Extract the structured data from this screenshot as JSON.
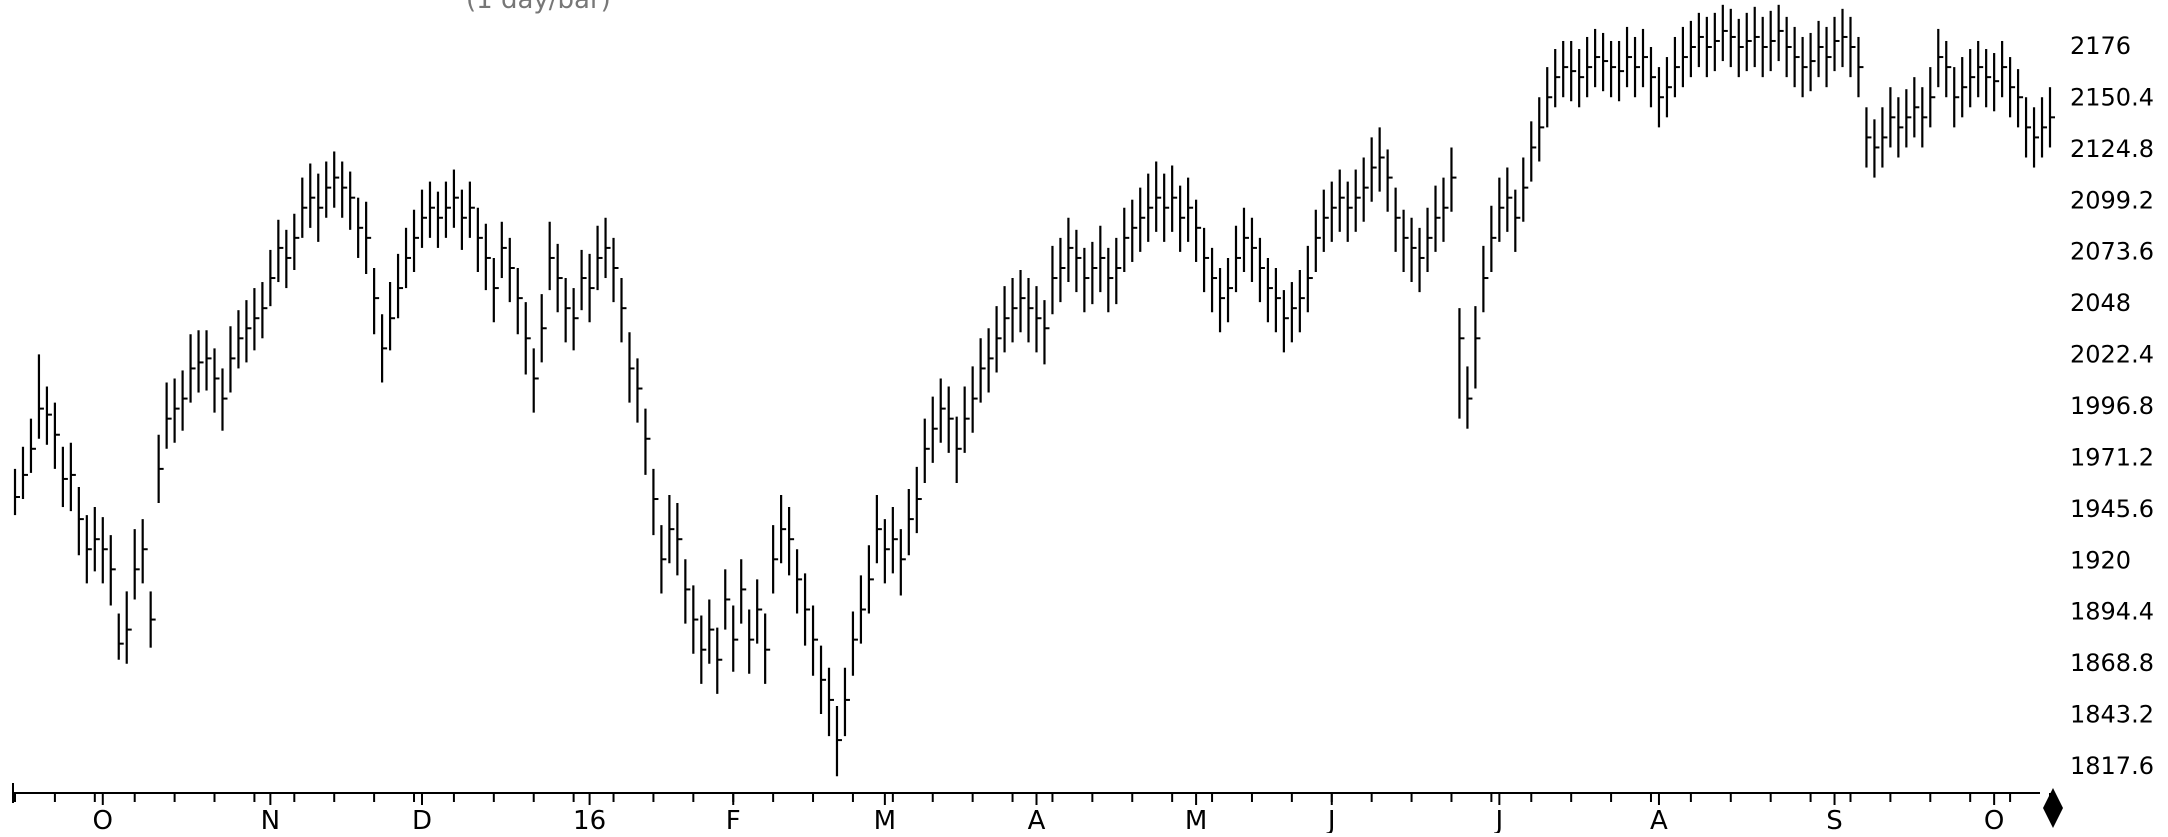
{
  "chart_data": {
    "type": "ohlc",
    "title": "",
    "header_fragment": "(1 day/bar)",
    "xlabel": "",
    "ylabel": "",
    "ylim": [
      1805,
      2188
    ],
    "y_ticks": [
      "2176",
      "2150.4",
      "2124.8",
      "2099.2",
      "2073.6",
      "2048",
      "2022.4",
      "1996.8",
      "1971.2",
      "1945.6",
      "1920",
      "1894.4",
      "1868.8",
      "1843.2",
      "1817.6"
    ],
    "x_tick_labels": [
      "O",
      "N",
      "D",
      "16",
      "F",
      "M",
      "A",
      "M",
      "J",
      "J",
      "A",
      "S",
      "O"
    ],
    "x_tick_bar_index": [
      11,
      32,
      51,
      72,
      90,
      109,
      128,
      148,
      165,
      186,
      206,
      228,
      248
    ],
    "grid": false,
    "legend": "none",
    "colors": {
      "bars": "#000000",
      "axis": "#000000",
      "marker": "#000000"
    },
    "series": [
      {
        "closes": [
          1951,
          1962,
          1975,
          1995,
          1992,
          1982,
          1960,
          1962,
          1940,
          1925,
          1930,
          1925,
          1915,
          1878,
          1885,
          1915,
          1925,
          1890,
          1965,
          1990,
          1995,
          2000,
          2015,
          2018,
          2020,
          2010,
          2000,
          2020,
          2030,
          2035,
          2040,
          2045,
          2060,
          2075,
          2070,
          2080,
          2095,
          2100,
          2095,
          2105,
          2110,
          2105,
          2100,
          2085,
          2080,
          2050,
          2025,
          2040,
          2055,
          2070,
          2080,
          2090,
          2095,
          2090,
          2095,
          2100,
          2090,
          2095,
          2080,
          2070,
          2055,
          2075,
          2065,
          2050,
          2030,
          2010,
          2035,
          2070,
          2060,
          2045,
          2040,
          2060,
          2055,
          2070,
          2075,
          2065,
          2045,
          2015,
          2005,
          1980,
          1950,
          1920,
          1935,
          1930,
          1905,
          1890,
          1875,
          1885,
          1870,
          1900,
          1880,
          1905,
          1880,
          1895,
          1875,
          1920,
          1935,
          1930,
          1910,
          1895,
          1880,
          1860,
          1850,
          1830,
          1850,
          1880,
          1895,
          1910,
          1935,
          1925,
          1930,
          1920,
          1940,
          1950,
          1975,
          1985,
          1995,
          1990,
          1975,
          1990,
          2000,
          2015,
          2020,
          2030,
          2040,
          2045,
          2050,
          2045,
          2040,
          2035,
          2060,
          2065,
          2075,
          2070,
          2060,
          2065,
          2070,
          2060,
          2065,
          2080,
          2085,
          2090,
          2095,
          2100,
          2095,
          2100,
          2090,
          2095,
          2085,
          2070,
          2060,
          2050,
          2055,
          2070,
          2080,
          2075,
          2065,
          2055,
          2050,
          2040,
          2045,
          2050,
          2060,
          2080,
          2090,
          2095,
          2100,
          2095,
          2100,
          2105,
          2115,
          2120,
          2110,
          2090,
          2080,
          2075,
          2070,
          2080,
          2090,
          2095,
          2110,
          2030,
          2000,
          2030,
          2060,
          2080,
          2095,
          2100,
          2090,
          2105,
          2125,
          2135,
          2150,
          2160,
          2165,
          2163,
          2160,
          2165,
          2170,
          2168,
          2165,
          2163,
          2170,
          2165,
          2170,
          2160,
          2150,
          2155,
          2165,
          2170,
          2175,
          2180,
          2175,
          2178,
          2183,
          2180,
          2175,
          2178,
          2180,
          2175,
          2178,
          2183,
          2175,
          2170,
          2165,
          2168,
          2175,
          2170,
          2178,
          2180,
          2175,
          2165,
          2130,
          2125,
          2130,
          2140,
          2135,
          2140,
          2145,
          2140,
          2150,
          2170,
          2165,
          2150,
          2155,
          2160,
          2165,
          2160,
          2158,
          2165,
          2155,
          2150,
          2135,
          2130,
          2135,
          2140
        ],
        "highs": [
          1965,
          1976,
          1990,
          2022,
          2006,
          1998,
          1976,
          1978,
          1956,
          1942,
          1946,
          1941,
          1932,
          1893,
          1904,
          1935,
          1940,
          1904,
          1982,
          2008,
          2010,
          2014,
          2032,
          2034,
          2034,
          2025,
          2015,
          2036,
          2044,
          2049,
          2055,
          2058,
          2074,
          2089,
          2084,
          2092,
          2110,
          2117,
          2112,
          2118,
          2123,
          2118,
          2113,
          2100,
          2098,
          2065,
          2042,
          2058,
          2072,
          2085,
          2094,
          2104,
          2108,
          2103,
          2108,
          2114,
          2104,
          2108,
          2095,
          2087,
          2070,
          2088,
          2080,
          2065,
          2048,
          2025,
          2052,
          2088,
          2077,
          2060,
          2055,
          2074,
          2072,
          2086,
          2090,
          2080,
          2060,
          2033,
          2020,
          1995,
          1965,
          1937,
          1952,
          1948,
          1920,
          1907,
          1892,
          1900,
          1886,
          1915,
          1897,
          1920,
          1895,
          1910,
          1893,
          1937,
          1952,
          1946,
          1925,
          1913,
          1897,
          1877,
          1866,
          1847,
          1866,
          1894,
          1912,
          1927,
          1952,
          1940,
          1946,
          1935,
          1955,
          1966,
          1990,
          2001,
          2010,
          2006,
          1991,
          2006,
          2016,
          2030,
          2035,
          2046,
          2056,
          2060,
          2064,
          2060,
          2056,
          2049,
          2076,
          2080,
          2090,
          2084,
          2075,
          2078,
          2086,
          2075,
          2080,
          2095,
          2099,
          2105,
          2112,
          2118,
          2112,
          2116,
          2106,
          2110,
          2099,
          2085,
          2075,
          2065,
          2070,
          2086,
          2095,
          2090,
          2080,
          2070,
          2065,
          2054,
          2058,
          2064,
          2076,
          2094,
          2104,
          2108,
          2114,
          2108,
          2114,
          2120,
          2130,
          2135,
          2124,
          2105,
          2094,
          2090,
          2085,
          2095,
          2106,
          2110,
          2125,
          2045,
          2016,
          2046,
          2076,
          2096,
          2110,
          2115,
          2104,
          2120,
          2138,
          2150,
          2165,
          2174,
          2178,
          2178,
          2174,
          2180,
          2184,
          2182,
          2178,
          2178,
          2185,
          2180,
          2184,
          2175,
          2165,
          2170,
          2180,
          2185,
          2188,
          2192,
          2190,
          2192,
          2196,
          2194,
          2189,
          2192,
          2195,
          2190,
          2193,
          2196,
          2190,
          2185,
          2180,
          2182,
          2188,
          2185,
          2190,
          2194,
          2190,
          2180,
          2145,
          2139,
          2145,
          2155,
          2150,
          2154,
          2160,
          2155,
          2165,
          2184,
          2178,
          2165,
          2170,
          2174,
          2178,
          2174,
          2172,
          2178,
          2170,
          2164,
          2150,
          2145,
          2150,
          2155
        ],
        "lows": [
          1942,
          1950,
          1963,
          1980,
          1977,
          1965,
          1946,
          1944,
          1922,
          1908,
          1914,
          1908,
          1897,
          1870,
          1868,
          1900,
          1908,
          1876,
          1948,
          1975,
          1978,
          1984,
          1998,
          2003,
          2004,
          1993,
          1984,
          2003,
          2015,
          2018,
          2024,
          2030,
          2046,
          2058,
          2055,
          2064,
          2080,
          2085,
          2078,
          2090,
          2095,
          2090,
          2084,
          2070,
          2062,
          2032,
          2008,
          2024,
          2040,
          2055,
          2063,
          2075,
          2080,
          2075,
          2080,
          2085,
          2074,
          2080,
          2063,
          2054,
          2038,
          2060,
          2048,
          2032,
          2012,
          1993,
          2018,
          2054,
          2043,
          2028,
          2024,
          2044,
          2038,
          2054,
          2060,
          2048,
          2028,
          1998,
          1988,
          1962,
          1932,
          1903,
          1918,
          1912,
          1888,
          1873,
          1858,
          1868,
          1853,
          1885,
          1864,
          1888,
          1863,
          1878,
          1858,
          1903,
          1918,
          1912,
          1893,
          1877,
          1862,
          1843,
          1832,
          1812,
          1832,
          1862,
          1878,
          1893,
          1918,
          1908,
          1913,
          1902,
          1922,
          1933,
          1958,
          1968,
          1978,
          1973,
          1958,
          1973,
          1983,
          1998,
          2003,
          2013,
          2023,
          2028,
          2033,
          2028,
          2023,
          2017,
          2042,
          2048,
          2058,
          2053,
          2043,
          2047,
          2053,
          2043,
          2047,
          2063,
          2068,
          2073,
          2078,
          2083,
          2078,
          2083,
          2073,
          2078,
          2068,
          2053,
          2043,
          2033,
          2038,
          2053,
          2063,
          2058,
          2048,
          2038,
          2033,
          2023,
          2028,
          2033,
          2043,
          2063,
          2073,
          2078,
          2083,
          2078,
          2083,
          2088,
          2098,
          2103,
          2093,
          2073,
          2063,
          2058,
          2053,
          2063,
          2073,
          2078,
          2093,
          1990,
          1985,
          2005,
          2043,
          2063,
          2078,
          2083,
          2073,
          2088,
          2108,
          2118,
          2135,
          2145,
          2150,
          2148,
          2145,
          2150,
          2155,
          2153,
          2150,
          2148,
          2155,
          2150,
          2155,
          2145,
          2135,
          2140,
          2150,
          2155,
          2160,
          2165,
          2160,
          2163,
          2168,
          2165,
          2160,
          2163,
          2165,
          2160,
          2163,
          2168,
          2160,
          2155,
          2150,
          2153,
          2160,
          2155,
          2163,
          2165,
          2160,
          2150,
          2115,
          2110,
          2115,
          2125,
          2120,
          2125,
          2130,
          2125,
          2135,
          2155,
          2150,
          2135,
          2140,
          2145,
          2150,
          2145,
          2143,
          2150,
          2140,
          2135,
          2120,
          2115,
          2120,
          2125
        ]
      }
    ]
  }
}
